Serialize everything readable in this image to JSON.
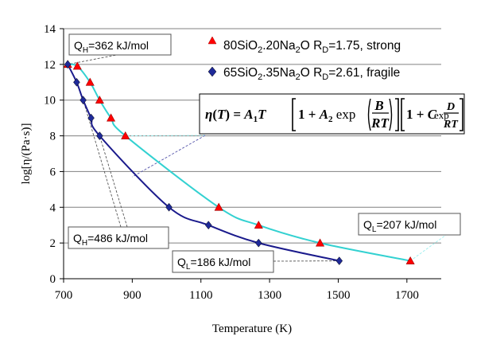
{
  "chart_data": {
    "type": "scatter",
    "xlabel": "Temperature (K)",
    "ylabel": "log[η/(Pa·s)]",
    "xlim": [
      700,
      1800
    ],
    "ylim": [
      0,
      14
    ],
    "x_ticks": [
      "700",
      "900",
      "1100",
      "1300",
      "1500",
      "1700"
    ],
    "y_ticks": [
      "0",
      "2",
      "4",
      "6",
      "8",
      "10",
      "12",
      "14"
    ],
    "grid": "horizontal",
    "legend_position": "top-right",
    "series": [
      {
        "name_main": "80SiO",
        "name_sub": "2",
        "name_rest": ".20Na",
        "name_sub2": "2",
        "name_tail": "O R",
        "name_sub3": "D",
        "name_end": "=1.75, strong",
        "marker": "triangle",
        "marker_color": "#ff0000",
        "line_color": "#33d1d1",
        "points": [
          {
            "x": 712,
            "y": 12
          },
          {
            "x": 740,
            "y": 11.9
          },
          {
            "x": 777,
            "y": 11
          },
          {
            "x": 805,
            "y": 10
          },
          {
            "x": 838,
            "y": 9
          },
          {
            "x": 880,
            "y": 8
          },
          {
            "x": 1152,
            "y": 4
          },
          {
            "x": 1268,
            "y": 3
          },
          {
            "x": 1447,
            "y": 2
          },
          {
            "x": 1710,
            "y": 1
          }
        ]
      },
      {
        "name_main": "65SiO",
        "name_sub": "2",
        "name_rest": ".35Na",
        "name_sub2": "2",
        "name_tail": "O R",
        "name_sub3": "D",
        "name_end": "=2.61, fragile",
        "marker": "diamond",
        "marker_color": "#1f2a99",
        "line_color": "#1a1a8c",
        "points": [
          {
            "x": 712,
            "y": 12
          },
          {
            "x": 738,
            "y": 11
          },
          {
            "x": 757,
            "y": 10
          },
          {
            "x": 780,
            "y": 9
          },
          {
            "x": 805,
            "y": 8
          },
          {
            "x": 1007,
            "y": 4
          },
          {
            "x": 1122,
            "y": 3
          },
          {
            "x": 1268,
            "y": 2
          },
          {
            "x": 1503,
            "y": 1
          }
        ]
      }
    ],
    "annotations": [
      {
        "id": "qh1",
        "prefix": "Q",
        "sub": "H",
        "value": "=362 kJ/mol"
      },
      {
        "id": "qh2",
        "prefix": "Q",
        "sub": "H",
        "value": "=486 kJ/mol"
      },
      {
        "id": "ql1",
        "prefix": "Q",
        "sub": "L",
        "value": "=186 kJ/mol"
      },
      {
        "id": "ql2",
        "prefix": "Q",
        "sub": "L",
        "value": "=207 kJ/mol"
      }
    ],
    "equation": {
      "eta": "η",
      "T": "T",
      "eq": " = ",
      "A1": "A",
      "A1_sub": "1",
      "A2": "A",
      "A2_sub": "2",
      "exp": "exp",
      "one": "1 +",
      "C": "C",
      "B": "B",
      "D": "D",
      "RT": "RT"
    }
  }
}
